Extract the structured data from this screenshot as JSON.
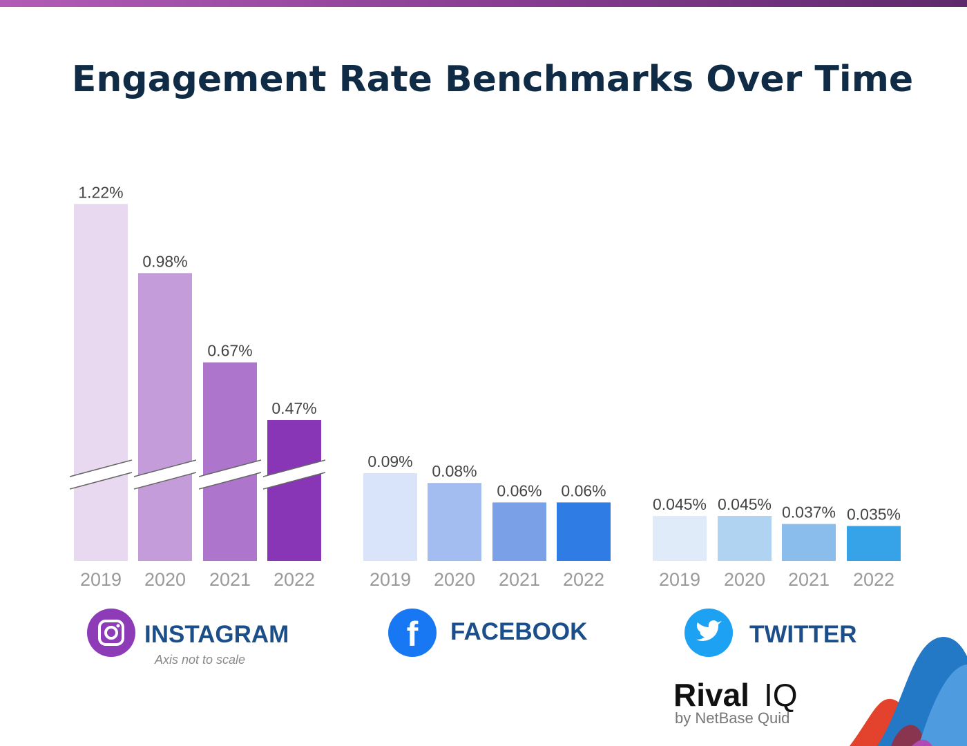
{
  "chart_data": {
    "type": "bar",
    "title": "Engagement Rate Benchmarks Over Time",
    "categories": [
      "2019",
      "2020",
      "2021",
      "2022"
    ],
    "groups": [
      {
        "name": "INSTAGRAM",
        "icon": "instagram-icon",
        "note": "Axis not to scale",
        "axis_break": true,
        "values": [
          1.22,
          0.98,
          0.67,
          0.47
        ],
        "labels": [
          "1.22%",
          "0.98%",
          "0.67%",
          "0.47%"
        ],
        "colors": [
          "#e8d8f0",
          "#c59cda",
          "#ad76cc",
          "#8936b6"
        ]
      },
      {
        "name": "FACEBOOK",
        "icon": "facebook-icon",
        "values": [
          0.09,
          0.08,
          0.06,
          0.06
        ],
        "labels": [
          "0.09%",
          "0.08%",
          "0.06%",
          "0.06%"
        ],
        "colors": [
          "#d9e4fa",
          "#a3bdf0",
          "#7aa0e8",
          "#2f7de4"
        ]
      },
      {
        "name": "TWITTER",
        "icon": "twitter-icon",
        "values": [
          0.045,
          0.045,
          0.037,
          0.035
        ],
        "labels": [
          "0.045%",
          "0.045%",
          "0.037%",
          "0.035%"
        ],
        "colors": [
          "#dfebf8",
          "#b0d3f2",
          "#8abdec",
          "#36a3e8"
        ]
      }
    ]
  },
  "logo": {
    "brand": "Rival IQ",
    "sub": "by NetBase Quid"
  }
}
